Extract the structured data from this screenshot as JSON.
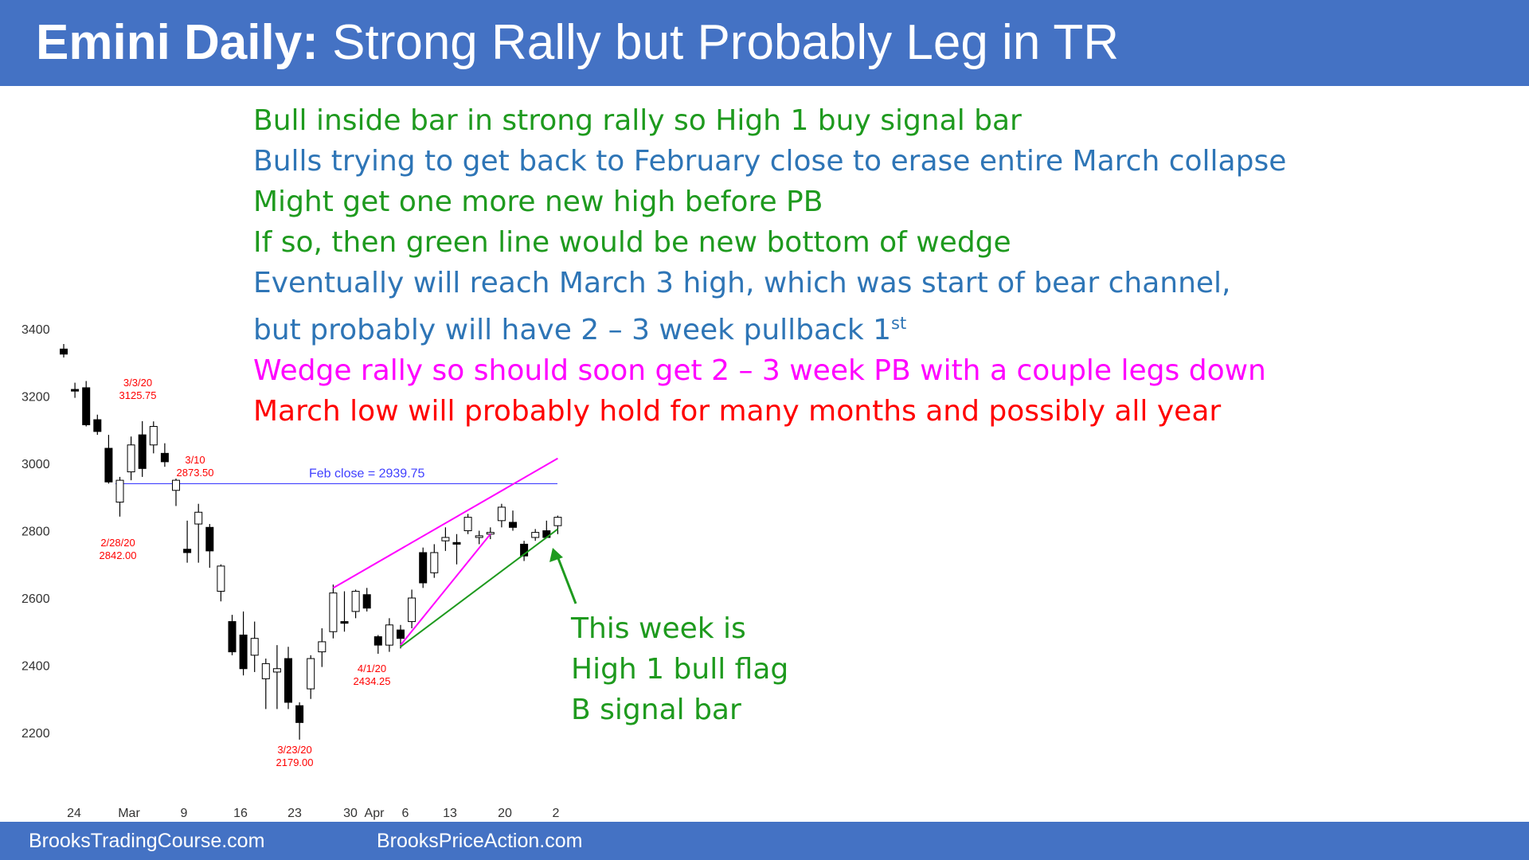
{
  "header": {
    "title_bold": "Emini Daily:",
    "title_rest": "Strong Rally but Probably Leg in TR",
    "bg_color": "#4472c4"
  },
  "footer": {
    "left": "BrooksTradingCourse.com",
    "right": "BrooksPriceAction.com"
  },
  "notes": [
    {
      "text": "Bull inside bar in strong rally so High 1 buy signal bar",
      "color": "#1e9a1e"
    },
    {
      "text": "Bulls trying to get back to February close to erase entire March collapse",
      "color": "#2e75b6"
    },
    {
      "text": "Might get one more new high before PB",
      "color": "#1e9a1e"
    },
    {
      "text": "If so, then green line would be new bottom of wedge",
      "color": "#1e9a1e"
    },
    {
      "text": "Eventually will reach March 3 high, which was start of bear channel,",
      "color": "#2e75b6"
    },
    {
      "text": "but probably will have 2 – 3 week pullback 1",
      "sup": "st",
      "color": "#2e75b6"
    },
    {
      "text": "Wedge rally so should soon get 2 – 3 week PB with a couple legs down",
      "color": "#ff00ff"
    },
    {
      "text": "March low will probably hold for many months and possibly all year",
      "color": "#ff0000"
    }
  ],
  "callout": {
    "lines": [
      "This week is",
      "High 1 bull flag",
      "B signal bar"
    ],
    "color": "#1e9a1e"
  },
  "chart_data": {
    "type": "candlestick",
    "title": "",
    "xlabel": "",
    "ylabel": "",
    "ylim": [
      2080,
      3440
    ],
    "y_ticks": [
      3400,
      3200,
      3000,
      2800,
      2600,
      2400,
      2200
    ],
    "x_ticks": [
      "24",
      "Mar",
      "9",
      "16",
      "23",
      "30",
      "Apr",
      "6",
      "13",
      "20",
      "2"
    ],
    "grid": false,
    "candles": [
      {
        "o": 3340,
        "h": 3355,
        "l": 3315,
        "c": 3325
      },
      {
        "o": 3220,
        "h": 3240,
        "l": 3195,
        "c": 3215
      },
      {
        "o": 3225,
        "h": 3245,
        "l": 3110,
        "c": 3115
      },
      {
        "o": 3130,
        "h": 3145,
        "l": 3085,
        "c": 3095
      },
      {
        "o": 3045,
        "h": 3085,
        "l": 2940,
        "c": 2945
      },
      {
        "o": 2885,
        "h": 2960,
        "l": 2842,
        "c": 2950
      },
      {
        "o": 2975,
        "h": 3080,
        "l": 2950,
        "c": 3055
      },
      {
        "o": 3085,
        "h": 3125.75,
        "l": 2960,
        "c": 2985
      },
      {
        "o": 3055,
        "h": 3125,
        "l": 3030,
        "c": 3110
      },
      {
        "o": 3030,
        "h": 3060,
        "l": 2990,
        "c": 3005
      },
      {
        "o": 2920,
        "h": 2955,
        "l": 2873.5,
        "c": 2950
      },
      {
        "o": 2745,
        "h": 2830,
        "l": 2705,
        "c": 2735
      },
      {
        "o": 2820,
        "h": 2880,
        "l": 2705,
        "c": 2855
      },
      {
        "o": 2810,
        "h": 2820,
        "l": 2690,
        "c": 2740
      },
      {
        "o": 2620,
        "h": 2700,
        "l": 2590,
        "c": 2695
      },
      {
        "o": 2530,
        "h": 2550,
        "l": 2430,
        "c": 2440
      },
      {
        "o": 2490,
        "h": 2560,
        "l": 2370,
        "c": 2390
      },
      {
        "o": 2430,
        "h": 2530,
        "l": 2380,
        "c": 2480
      },
      {
        "o": 2360,
        "h": 2420,
        "l": 2270,
        "c": 2405
      },
      {
        "o": 2380,
        "h": 2460,
        "l": 2270,
        "c": 2390
      },
      {
        "o": 2420,
        "h": 2455,
        "l": 2270,
        "c": 2290
      },
      {
        "o": 2280,
        "h": 2290,
        "l": 2179,
        "c": 2230
      },
      {
        "o": 2330,
        "h": 2430,
        "l": 2300,
        "c": 2420
      },
      {
        "o": 2440,
        "h": 2510,
        "l": 2395,
        "c": 2470
      },
      {
        "o": 2500,
        "h": 2640,
        "l": 2480,
        "c": 2615
      },
      {
        "o": 2530,
        "h": 2620,
        "l": 2500,
        "c": 2525
      },
      {
        "o": 2560,
        "h": 2625,
        "l": 2540,
        "c": 2620
      },
      {
        "o": 2610,
        "h": 2630,
        "l": 2560,
        "c": 2570
      },
      {
        "o": 2485,
        "h": 2490,
        "l": 2434.25,
        "c": 2460
      },
      {
        "o": 2460,
        "h": 2540,
        "l": 2440,
        "c": 2520
      },
      {
        "o": 2505,
        "h": 2520,
        "l": 2450,
        "c": 2480
      },
      {
        "o": 2530,
        "h": 2625,
        "l": 2510,
        "c": 2600
      },
      {
        "o": 2735,
        "h": 2750,
        "l": 2630,
        "c": 2645
      },
      {
        "o": 2675,
        "h": 2760,
        "l": 2660,
        "c": 2735
      },
      {
        "o": 2770,
        "h": 2810,
        "l": 2740,
        "c": 2780
      },
      {
        "o": 2765,
        "h": 2790,
        "l": 2700,
        "c": 2760
      },
      {
        "o": 2800,
        "h": 2850,
        "l": 2790,
        "c": 2840
      },
      {
        "o": 2780,
        "h": 2800,
        "l": 2760,
        "c": 2785
      },
      {
        "o": 2790,
        "h": 2810,
        "l": 2775,
        "c": 2795
      },
      {
        "o": 2830,
        "h": 2880,
        "l": 2810,
        "c": 2870
      },
      {
        "o": 2825,
        "h": 2860,
        "l": 2800,
        "c": 2810
      },
      {
        "o": 2760,
        "h": 2770,
        "l": 2710,
        "c": 2725
      },
      {
        "o": 2780,
        "h": 2805,
        "l": 2770,
        "c": 2795
      },
      {
        "o": 2800,
        "h": 2830,
        "l": 2780,
        "c": 2780
      },
      {
        "o": 2815,
        "h": 2845,
        "l": 2790,
        "c": 2840
      }
    ],
    "reference_line": {
      "label": "Feb close = 2939.75",
      "value": 2939.75,
      "color": "#4040ff"
    },
    "annotations": [
      {
        "date": "3/3/20",
        "value": "3125.75"
      },
      {
        "date": "3/10",
        "value": "2873.50"
      },
      {
        "date": "2/28/20",
        "value": "2842.00"
      },
      {
        "date": "4/1/20",
        "value": "2434.25"
      },
      {
        "date": "3/23/20",
        "value": "2179.00"
      }
    ],
    "trend_lines": [
      {
        "name": "wedge-top",
        "color": "#ff00ff",
        "from": {
          "candle": 24,
          "price": 2630
        },
        "to": {
          "candle": 44,
          "price": 3015
        }
      },
      {
        "name": "minor-bull",
        "color": "#ff00ff",
        "from": {
          "candle": 30,
          "price": 2460
        },
        "to": {
          "candle": 38,
          "price": 2790
        }
      },
      {
        "name": "wedge-bottom",
        "color": "#1e9a1e",
        "from": {
          "candle": 30,
          "price": 2455
        },
        "to": {
          "candle": 44,
          "price": 2805
        }
      }
    ]
  }
}
